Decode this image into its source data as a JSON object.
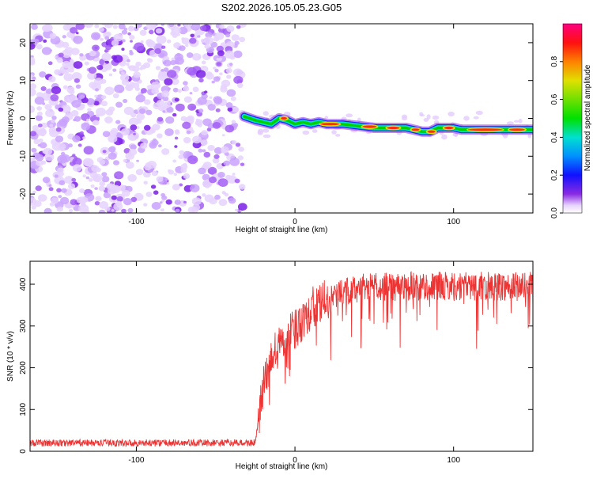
{
  "title": "S202.2026.105.05.23.G05",
  "chart_data": [
    {
      "type": "heatmap",
      "id": "spectrogram",
      "xlabel": "Height of straight line (km)",
      "ylabel": "Frequency (Hz)",
      "xlim": [
        -167,
        150
      ],
      "ylim": [
        -25,
        25
      ],
      "xticks": [
        -100,
        0,
        100
      ],
      "yticks": [
        -20,
        -10,
        0,
        10,
        20
      ],
      "noise_region_x": [
        -167,
        -33
      ],
      "signal_track": {
        "x": [
          -32,
          -25,
          -20,
          -15,
          -10,
          -5,
          0,
          5,
          10,
          15,
          20,
          25,
          30,
          40,
          50,
          60,
          70,
          75,
          80,
          85,
          90,
          95,
          100,
          105,
          110,
          120,
          130,
          140,
          150
        ],
        "freq": [
          0.5,
          -0.5,
          -1,
          -1.5,
          0,
          -0.5,
          -1.5,
          -1,
          -1.5,
          -1,
          -1.5,
          -1.5,
          -1.5,
          -2,
          -2.5,
          -2.5,
          -2.5,
          -3,
          -3.5,
          -3.5,
          -2.5,
          -2.5,
          -2.5,
          -3,
          -3,
          -3,
          -3,
          -3,
          -3
        ]
      },
      "colorbar": {
        "label": "Normalized spectral amplitude",
        "ticks": [
          0.0,
          0.2,
          0.4,
          0.6,
          0.8
        ],
        "tick_labels": [
          "0.0",
          "0.2",
          "0.4",
          "0.6",
          "0.8"
        ],
        "range": [
          0,
          1
        ]
      }
    },
    {
      "type": "line",
      "id": "snr",
      "xlabel": "Height of straight line (km)",
      "ylabel": "SNR (10 * v/v)",
      "xlim": [
        -167,
        150
      ],
      "ylim": [
        0,
        455
      ],
      "xticks": [
        -100,
        0,
        100
      ],
      "yticks": [
        0,
        100,
        200,
        300,
        400
      ],
      "series": [
        {
          "name": "SNR",
          "color": "#ee3333",
          "x": [
            -167,
            -150,
            -120,
            -90,
            -60,
            -40,
            -25,
            -20,
            -15,
            -10,
            -5,
            0,
            5,
            10,
            20,
            30,
            40,
            50,
            60,
            80,
            100,
            120,
            150
          ],
          "y": [
            20,
            20,
            20,
            20,
            20,
            20,
            20,
            150,
            220,
            250,
            270,
            290,
            320,
            340,
            360,
            380,
            390,
            395,
            395,
            395,
            395,
            395,
            395
          ]
        }
      ]
    }
  ]
}
